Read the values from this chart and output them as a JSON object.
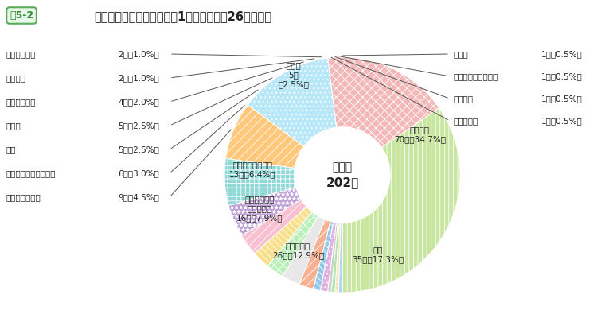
{
  "title": "事故の型別死傷者数〔休業1日以上（平成26年度）〕",
  "title_box": "図5-2",
  "center_line1": "死傷者",
  "center_line2": "202人",
  "slices": [
    {
      "label": "武道訓練",
      "value": 70,
      "pct": "34.7",
      "color": "#c8e6a0",
      "hatch": "|||",
      "label_inside": true
    },
    {
      "label": "転倒",
      "value": 35,
      "pct": "17.3",
      "color": "#f4b8b8",
      "hatch": "xxx",
      "label_inside": true
    },
    {
      "label": "墜落・転落",
      "value": 26,
      "pct": "12.9",
      "color": "#b8e8f8",
      "hatch": "...",
      "label_inside": true
    },
    {
      "label": "動作の反動・\n無理な動作",
      "value": 16,
      "pct": "7.9",
      "color": "#ffc87a",
      "hatch": "///",
      "label_inside": true
    },
    {
      "label": "交通事故（道路）",
      "value": 13,
      "pct": "6.4",
      "color": "#90d8d8",
      "hatch": "+++",
      "label_inside": true
    },
    {
      "label": "レク・スポーツ",
      "value": 9,
      "pct": "4.5",
      "color": "#c0a0d8",
      "hatch": "***",
      "label_inside": false,
      "legend": "left"
    },
    {
      "label": "はさまれ・巻き込まれ",
      "value": 6,
      "pct": "3.0",
      "color": "#f8c0d0",
      "hatch": "///",
      "label_inside": false,
      "legend": "left"
    },
    {
      "label": "激突",
      "value": 5,
      "pct": "2.5",
      "color": "#f8e08a",
      "hatch": "\\\\\\\\",
      "label_inside": false,
      "legend": "left"
    },
    {
      "label": "暴行等",
      "value": 5,
      "pct": "2.5",
      "color": "#b8f0b8",
      "hatch": "xxx",
      "label_inside": false,
      "legend": "left"
    },
    {
      "label": "その他",
      "value": 5,
      "pct": "2.5",
      "color": "#e8e8e8",
      "hatch": "",
      "label_inside": true
    },
    {
      "label": "切れ・こすれ",
      "value": 4,
      "pct": "2.0",
      "color": "#f8b090",
      "hatch": "///",
      "label_inside": false,
      "legend": "left"
    },
    {
      "label": "激突され",
      "value": 2,
      "pct": "1.0",
      "color": "#90c8e8",
      "hatch": "\\\\\\\\",
      "label_inside": false,
      "legend": "left"
    },
    {
      "label": "特殊危険災害",
      "value": 2,
      "pct": "1.0",
      "color": "#e0b0e0",
      "hatch": "...",
      "label_inside": false,
      "legend": "left"
    },
    {
      "label": "飛来・落下",
      "value": 1,
      "pct": "0.5",
      "color": "#d0d0d0",
      "hatch": "",
      "label_inside": false,
      "legend": "right"
    },
    {
      "label": "踏み抜き",
      "value": 1,
      "pct": "0.5",
      "color": "#a8e8a8",
      "hatch": "",
      "label_inside": false,
      "legend": "right"
    },
    {
      "label": "交通事故（その他）",
      "value": 1,
      "pct": "0.5",
      "color": "#f8e0b0",
      "hatch": "///",
      "label_inside": false,
      "legend": "right"
    },
    {
      "label": "おぼれ",
      "value": 1,
      "pct": "0.5",
      "color": "#b0d8f0",
      "hatch": "",
      "label_inside": false,
      "legend": "right"
    }
  ],
  "legend_left": [
    "特殊危険災害",
    "激突され",
    "切れ・こすれ",
    "暴行等",
    "激突",
    "はさまれ・巻き込まれ",
    "レク・スポーツ"
  ],
  "legend_left_vals": [
    "2人（1.0%）",
    "2人（1.0%）",
    "4人（2.0%）",
    "5人（2.5%）",
    "5人（2.5%）",
    "6人（3.0%）",
    "9人（4.5%）"
  ],
  "legend_right": [
    "おぼれ",
    "交通事故（その他）",
    "踏み抜き",
    "飛来・落下"
  ],
  "legend_right_vals": [
    "1人（0.5%）",
    "1人（0.5%）",
    "1人（0.5%）",
    "1人（0.5%）"
  ],
  "bg_color": "#ffffff"
}
